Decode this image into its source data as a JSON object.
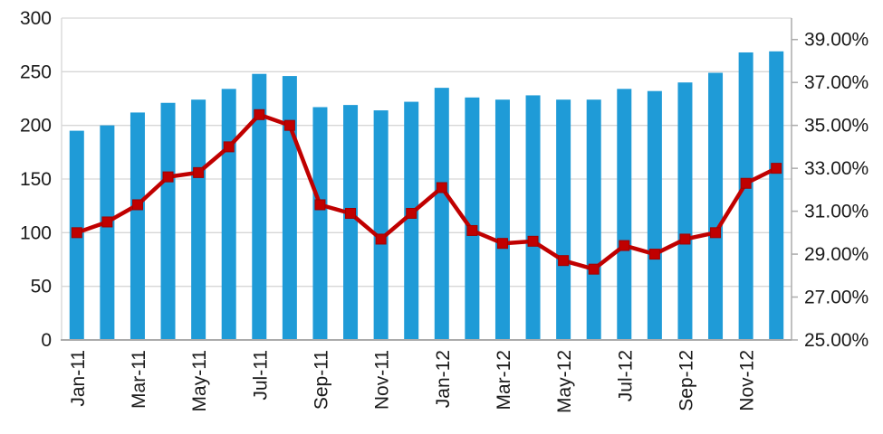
{
  "chart_data": {
    "type": "bar",
    "subtype": "combo-bar-line-dual-axis",
    "title": "",
    "xlabel": "",
    "ylabel": "",
    "grid": true,
    "legend": false,
    "categories": [
      "Jan-11",
      "Feb-11",
      "Mar-11",
      "Apr-11",
      "May-11",
      "Jun-11",
      "Jul-11",
      "Aug-11",
      "Sep-11",
      "Oct-11",
      "Nov-11",
      "Dec-11",
      "Jan-12",
      "Feb-12",
      "Mar-12",
      "Apr-12",
      "May-12",
      "Jun-12",
      "Jul-12",
      "Aug-12",
      "Sep-12",
      "Oct-12",
      "Nov-12",
      "Dec-12"
    ],
    "x_axis": {
      "label_every": 2,
      "shown_tick_labels": [
        "Jan-11",
        "Mar-11",
        "May-11",
        "Jul-11",
        "Sep-11",
        "Nov-11",
        "Jan-12",
        "Mar-12",
        "May-12",
        "Jul-12",
        "Sep-12",
        "Nov-12"
      ],
      "label_rotation_degrees": -90
    },
    "series": [
      {
        "name": "volume-bars",
        "type": "bar",
        "axis": "left",
        "color": "#1F9BD7",
        "values": [
          195,
          200,
          212,
          221,
          224,
          234,
          248,
          246,
          217,
          219,
          214,
          222,
          235,
          226,
          224,
          228,
          224,
          224,
          234,
          232,
          240,
          249,
          268,
          269
        ]
      },
      {
        "name": "percent-line",
        "type": "line",
        "axis": "right",
        "color": "#C00000",
        "marker": "square",
        "values": [
          30.0,
          30.5,
          31.3,
          32.6,
          32.8,
          34.0,
          35.5,
          35.0,
          31.3,
          30.9,
          29.7,
          30.9,
          32.1,
          30.1,
          29.5,
          29.6,
          28.7,
          28.3,
          29.4,
          29.0,
          29.7,
          30.0,
          32.3,
          33.0
        ]
      }
    ],
    "left_axis": {
      "min": 0,
      "max": 300,
      "step": 50,
      "tick_labels": [
        "0",
        "50",
        "100",
        "150",
        "200",
        "250",
        "300"
      ]
    },
    "right_axis": {
      "min": 25,
      "max": 40,
      "label_step": 2,
      "tick_labels": [
        "25.00%",
        "27.00%",
        "29.00%",
        "31.00%",
        "33.00%",
        "35.00%",
        "37.00%",
        "39.00%"
      ]
    }
  },
  "style": {
    "bar_color": "#1F9BD7",
    "line_color": "#C00000",
    "marker_edge_color": "#A00000",
    "gridline_color": "#D6D6D6",
    "axis_line_color": "#ABABAB",
    "text_color": "#1a1a1a",
    "background": "#FFFFFF"
  }
}
